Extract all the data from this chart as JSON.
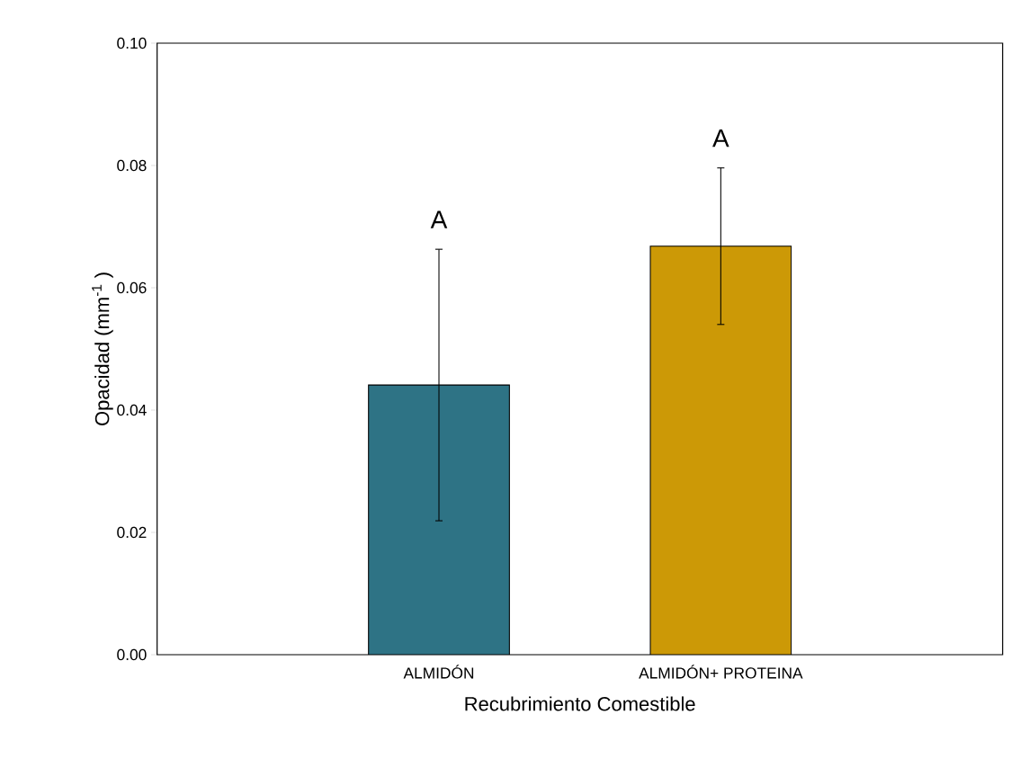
{
  "chart_data": {
    "type": "bar",
    "xlabel": "Recubrimiento Comestible",
    "ylabel": "Opacidad (mm$^{-1}$ )",
    "categories": [
      "ALMIDÓN",
      "ALMIDÓN+ PROTEINA"
    ],
    "values": [
      0.0441,
      0.0668
    ],
    "errors": [
      0.0222,
      0.0128
    ],
    "colors": [
      "#2e7385",
      "#cc9906"
    ],
    "ylim": [
      0,
      0.1
    ],
    "yticks": [
      {
        "value": 0,
        "label": "0.00"
      },
      {
        "value": 0.02,
        "label": "0.02"
      },
      {
        "value": 0.04,
        "label": "0.04"
      },
      {
        "value": 0.06,
        "label": "0.06"
      },
      {
        "value": 0.08,
        "label": "0.08"
      },
      {
        "value": 0.1,
        "label": "0.10"
      }
    ],
    "annotations": [
      "A",
      "A"
    ]
  }
}
